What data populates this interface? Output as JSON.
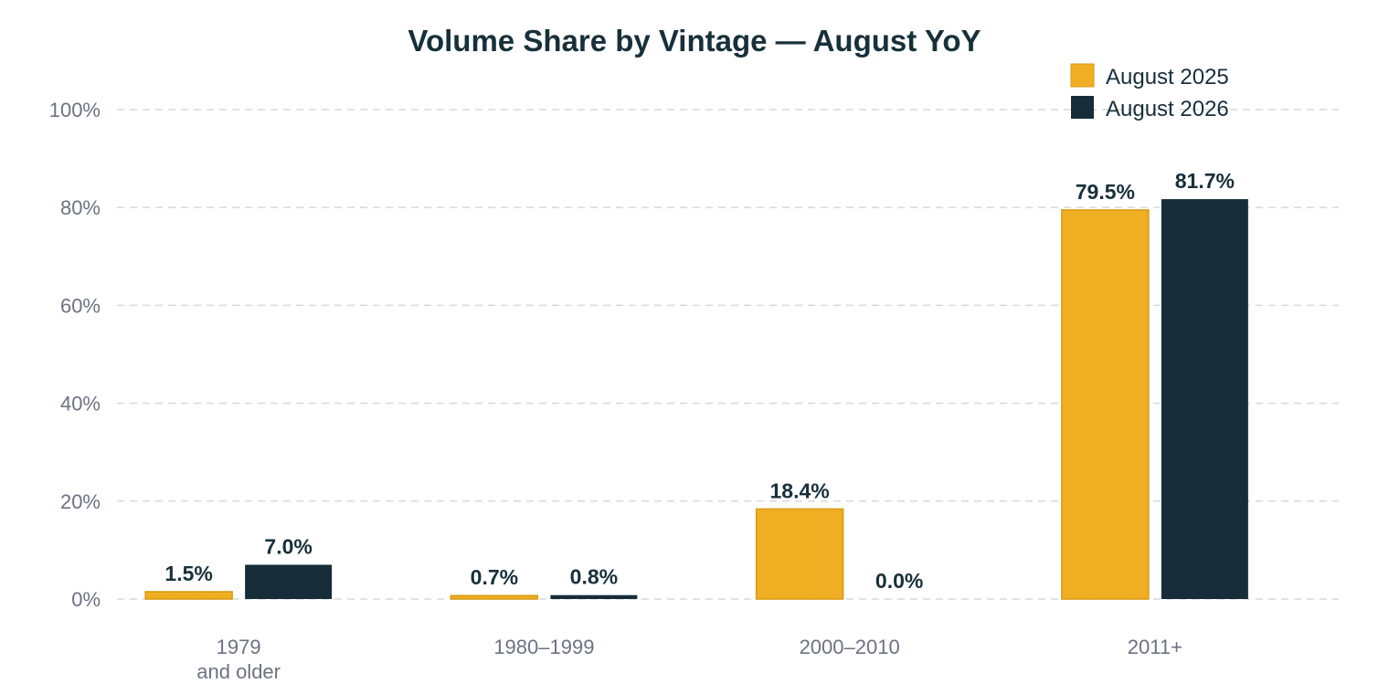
{
  "chart_data": {
    "type": "bar",
    "title": "Volume Share by Vintage — August YoY",
    "xlabel": "",
    "ylabel": "",
    "ylim": [
      0,
      100
    ],
    "yticks": [
      "0%",
      "20%",
      "40%",
      "60%",
      "80%",
      "100%"
    ],
    "ytick_values": [
      0,
      20,
      40,
      60,
      80,
      100
    ],
    "categories": [
      [
        "1979",
        "and older"
      ],
      [
        "1980–1999"
      ],
      [
        "2000–2010"
      ],
      [
        "2011+"
      ]
    ],
    "series": [
      {
        "name": "August 2025",
        "color": "#f0ae22",
        "values": [
          1.5,
          0.7,
          18.4,
          79.5
        ],
        "labels": [
          "1.5%",
          "0.7%",
          "18.4%",
          "79.5%"
        ]
      },
      {
        "name": "August 2026",
        "color": "#162d39",
        "values": [
          7.0,
          0.8,
          0.0,
          81.7
        ],
        "labels": [
          "7.0%",
          "0.8%",
          "0.0%",
          "81.7%"
        ]
      }
    ],
    "grid": true,
    "legend_position": "top-right"
  }
}
